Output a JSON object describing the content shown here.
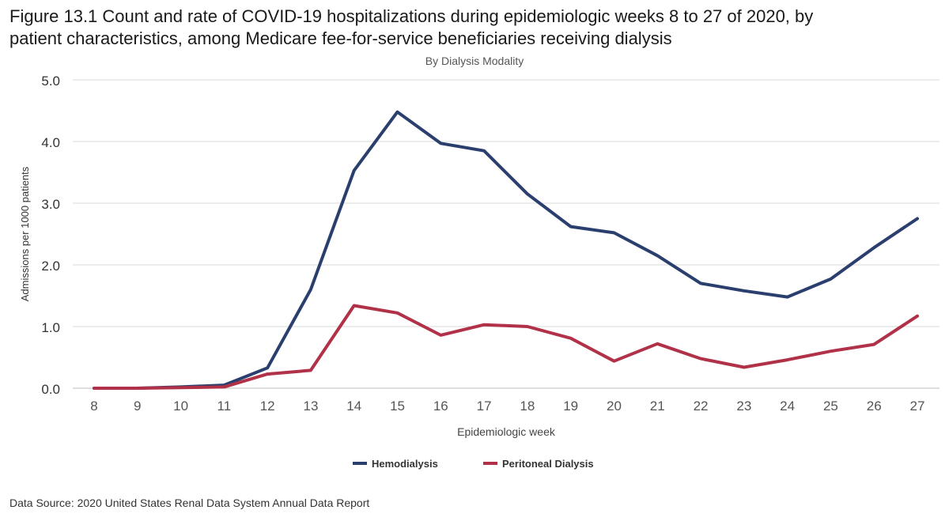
{
  "figure": {
    "title_line1": "Figure 13.1 Count and rate of COVID-19 hospitalizations during epidemiologic weeks 8 to 27 of 2020, by",
    "title_line2": "patient characteristics, among Medicare fee-for-service beneficiaries receiving dialysis",
    "source": "Data Source: 2020 United States Renal Data System Annual Data Report"
  },
  "chart_data": {
    "type": "line",
    "title": "By Dialysis Modality",
    "xlabel": "Epidemiologic week",
    "ylabel": "Admissions per 1000 patients",
    "x": [
      "8",
      "9",
      "10",
      "11",
      "12",
      "13",
      "14",
      "15",
      "16",
      "17",
      "18",
      "19",
      "20",
      "21",
      "22",
      "23",
      "24",
      "25",
      "26",
      "27"
    ],
    "ylim": [
      0,
      5
    ],
    "yticks": [
      "0.0",
      "1.0",
      "2.0",
      "3.0",
      "4.0",
      "5.0"
    ],
    "grid": true,
    "legend_position": "bottom",
    "series": [
      {
        "name": "Hemodialysis",
        "color": "#2b3f6e",
        "values": [
          0.0,
          0.0,
          0.02,
          0.05,
          0.33,
          1.6,
          3.53,
          4.48,
          3.97,
          3.85,
          3.15,
          2.62,
          2.52,
          2.15,
          1.7,
          1.58,
          1.48,
          1.77,
          2.28,
          2.75
        ]
      },
      {
        "name": "Peritoneal Dialysis",
        "color": "#b03148",
        "values": [
          0.0,
          0.0,
          0.01,
          0.02,
          0.23,
          0.29,
          1.34,
          1.22,
          0.86,
          1.03,
          1.0,
          0.81,
          0.44,
          0.72,
          0.48,
          0.34,
          0.46,
          0.6,
          0.71,
          1.17
        ]
      }
    ]
  }
}
